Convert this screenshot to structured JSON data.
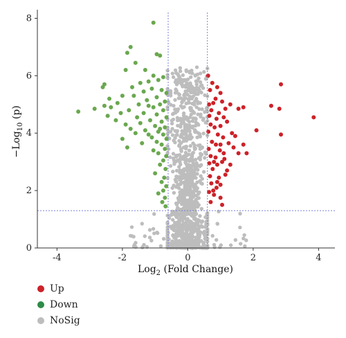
{
  "chart_data": {
    "type": "scatter",
    "xlabel": "Log",
    "xlabel_sub": "2",
    "xlabel_rest": " (Fold Change)",
    "ylabel": "−Log",
    "ylabel_sub": "10",
    "ylabel_rest": " (p)",
    "xlim": [
      -4.6,
      4.5
    ],
    "ylim": [
      0,
      8.3
    ],
    "xticks": [
      -4,
      -2,
      0,
      2,
      4
    ],
    "yticks": [
      0,
      2,
      4,
      6,
      8
    ],
    "thresholds": {
      "x": [
        -0.6,
        0.6
      ],
      "y": 1.3
    },
    "grid": false,
    "legend_position": "bottom-left",
    "colors": {
      "Up": "#cc2229",
      "Down": "#6aa84f",
      "NoSig": "#bdbdbd",
      "threshold": "#7b7fd6"
    },
    "series": [
      {
        "name": "Up",
        "points": [
          [
            0.62,
            6.0
          ],
          [
            0.75,
            5.75
          ],
          [
            0.68,
            5.5
          ],
          [
            0.9,
            5.6
          ],
          [
            1.0,
            5.4
          ],
          [
            0.85,
            5.2
          ],
          [
            0.65,
            5.0
          ],
          [
            0.78,
            5.05
          ],
          [
            1.05,
            5.1
          ],
          [
            1.3,
            5.0
          ],
          [
            0.72,
            4.8
          ],
          [
            0.95,
            4.7
          ],
          [
            1.15,
            4.85
          ],
          [
            0.66,
            4.6
          ],
          [
            0.88,
            4.5
          ],
          [
            1.1,
            4.55
          ],
          [
            0.7,
            4.3
          ],
          [
            0.82,
            4.2
          ],
          [
            1.0,
            4.25
          ],
          [
            1.2,
            4.4
          ],
          [
            0.63,
            4.05
          ],
          [
            0.92,
            3.95
          ],
          [
            1.08,
            3.85
          ],
          [
            1.35,
            4.0
          ],
          [
            0.74,
            3.7
          ],
          [
            0.86,
            3.6
          ],
          [
            1.25,
            3.65
          ],
          [
            0.64,
            3.45
          ],
          [
            0.98,
            3.4
          ],
          [
            1.1,
            3.3
          ],
          [
            0.7,
            3.2
          ],
          [
            0.85,
            3.15
          ],
          [
            1.4,
            3.5
          ],
          [
            1.55,
            3.3
          ],
          [
            0.66,
            2.95
          ],
          [
            0.9,
            2.9
          ],
          [
            1.05,
            3.0
          ],
          [
            0.76,
            2.75
          ],
          [
            1.2,
            2.7
          ],
          [
            0.68,
            2.5
          ],
          [
            0.95,
            2.45
          ],
          [
            1.15,
            2.55
          ],
          [
            0.72,
            2.25
          ],
          [
            0.88,
            2.1
          ],
          [
            0.65,
            1.95
          ],
          [
            0.8,
            1.85
          ],
          [
            1.0,
            1.75
          ],
          [
            0.7,
            1.6
          ],
          [
            1.05,
            1.5
          ],
          [
            0.9,
            2.3
          ],
          [
            1.3,
            2.9
          ],
          [
            1.45,
            3.9
          ],
          [
            1.55,
            4.85
          ],
          [
            1.7,
            4.9
          ],
          [
            1.7,
            3.6
          ],
          [
            1.8,
            3.3
          ],
          [
            2.1,
            4.1
          ],
          [
            2.55,
            4.95
          ],
          [
            2.85,
            5.7
          ],
          [
            2.8,
            4.85
          ],
          [
            2.85,
            3.95
          ],
          [
            3.85,
            4.55
          ],
          [
            0.8,
            3.0
          ],
          [
            1.0,
            3.6
          ],
          [
            0.78,
            2.0
          ],
          [
            1.12,
            3.1
          ],
          [
            1.0,
            2.2
          ]
        ]
      },
      {
        "name": "Down",
        "points": [
          [
            -1.05,
            7.85
          ],
          [
            -1.75,
            7.0
          ],
          [
            -1.85,
            6.8
          ],
          [
            -0.95,
            6.75
          ],
          [
            -0.85,
            6.7
          ],
          [
            -1.6,
            6.45
          ],
          [
            -1.9,
            6.2
          ],
          [
            -1.3,
            6.2
          ],
          [
            -1.05,
            6.0
          ],
          [
            -0.75,
            5.95
          ],
          [
            -0.9,
            5.85
          ],
          [
            -1.2,
            5.8
          ],
          [
            -1.45,
            5.75
          ],
          [
            -2.55,
            5.7
          ],
          [
            -2.6,
            5.6
          ],
          [
            -1.7,
            5.6
          ],
          [
            -1.1,
            5.55
          ],
          [
            -0.8,
            5.5
          ],
          [
            -1.35,
            5.45
          ],
          [
            -0.65,
            5.4
          ],
          [
            -2.0,
            5.3
          ],
          [
            -1.65,
            5.3
          ],
          [
            -0.95,
            5.25
          ],
          [
            -2.4,
            5.2
          ],
          [
            -1.25,
            5.15
          ],
          [
            -0.7,
            5.1
          ],
          [
            -2.15,
            5.05
          ],
          [
            -1.5,
            5.0
          ],
          [
            -0.85,
            5.0
          ],
          [
            -2.55,
            4.95
          ],
          [
            -2.35,
            4.9
          ],
          [
            -1.05,
            4.9
          ],
          [
            -2.85,
            4.85
          ],
          [
            -1.8,
            4.8
          ],
          [
            -0.75,
            4.8
          ],
          [
            -3.35,
            4.75
          ],
          [
            -2.05,
            4.7
          ],
          [
            -1.35,
            4.7
          ],
          [
            -0.95,
            4.65
          ],
          [
            -2.45,
            4.6
          ],
          [
            -1.55,
            4.55
          ],
          [
            -0.65,
            4.55
          ],
          [
            -1.15,
            4.45
          ],
          [
            -0.8,
            4.4
          ],
          [
            -1.9,
            4.3
          ],
          [
            -1.0,
            4.25
          ],
          [
            -0.7,
            4.2
          ],
          [
            -1.3,
            4.1
          ],
          [
            -0.9,
            4.05
          ],
          [
            -1.6,
            4.0
          ],
          [
            -0.75,
            3.95
          ],
          [
            -2.0,
            3.8
          ],
          [
            -1.1,
            3.85
          ],
          [
            -0.65,
            3.8
          ],
          [
            -0.95,
            3.7
          ],
          [
            -1.4,
            3.65
          ],
          [
            -0.8,
            3.6
          ],
          [
            -1.85,
            3.5
          ],
          [
            -0.7,
            3.45
          ],
          [
            -1.05,
            3.4
          ],
          [
            -0.9,
            3.3
          ],
          [
            -0.66,
            3.2
          ],
          [
            -0.75,
            3.05
          ],
          [
            -0.85,
            2.9
          ],
          [
            -0.68,
            2.75
          ],
          [
            -1.0,
            2.6
          ],
          [
            -0.72,
            2.45
          ],
          [
            -0.8,
            2.3
          ],
          [
            -0.66,
            2.15
          ],
          [
            -0.75,
            2.0
          ],
          [
            -0.9,
            1.9
          ],
          [
            -0.7,
            1.75
          ],
          [
            -0.78,
            1.6
          ],
          [
            -0.68,
            1.45
          ],
          [
            -1.2,
            4.95
          ],
          [
            -1.45,
            4.35
          ],
          [
            -2.2,
            4.45
          ],
          [
            -1.75,
            4.15
          ],
          [
            -1.2,
            3.95
          ],
          [
            -0.85,
            4.15
          ]
        ]
      }
    ]
  },
  "legend": [
    {
      "label": "Up",
      "color": "#cc2229"
    },
    {
      "label": "Down",
      "color": "#2e8b47"
    },
    {
      "label": "NoSig",
      "color": "#bdbdbd"
    }
  ]
}
